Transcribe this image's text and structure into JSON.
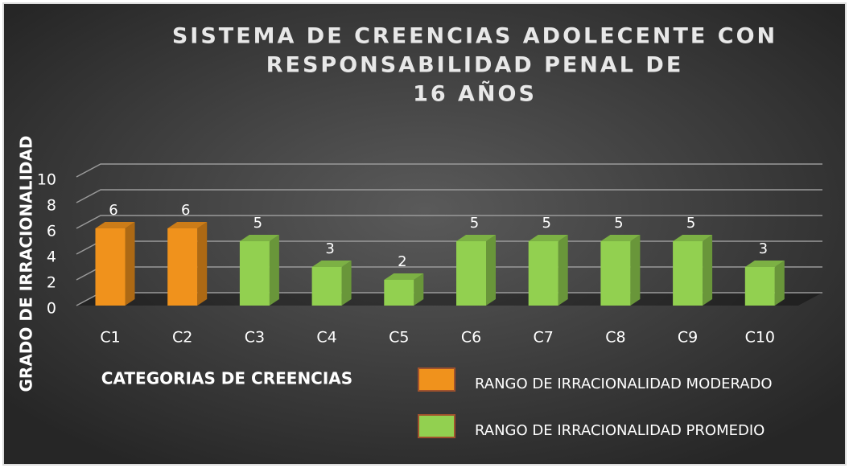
{
  "chart_data": {
    "type": "bar",
    "title": [
      "SISTEMA DE CREENCIAS ADOLECENTE CON",
      "RESPONSABILIDAD PENAL DE",
      "16 AÑOS"
    ],
    "y_label": "GRADO DE IRRACIONALIDAD",
    "x_label": "CATEGORIAS DE CREENCIAS",
    "categories": [
      "C1",
      "C2",
      "C3",
      "C4",
      "C5",
      "C6",
      "C7",
      "C8",
      "C9",
      "C10"
    ],
    "values": [
      6,
      6,
      5,
      3,
      2,
      5,
      5,
      5,
      5,
      3
    ],
    "colors": [
      "#f0921c",
      "#f0921c",
      "#92d050",
      "#92d050",
      "#92d050",
      "#92d050",
      "#92d050",
      "#92d050",
      "#92d050",
      "#92d050"
    ],
    "ylim": [
      0,
      10
    ],
    "yticks": [
      0,
      2,
      4,
      6,
      8,
      10
    ],
    "grid": true,
    "legend": [
      {
        "label": "RANGO DE IRRACIONALIDAD  MODERADO",
        "color": "#f0921c"
      },
      {
        "label": "RANGO DE IRRACIONALIDAD  PROMEDIO",
        "color": "#92d050"
      }
    ]
  }
}
